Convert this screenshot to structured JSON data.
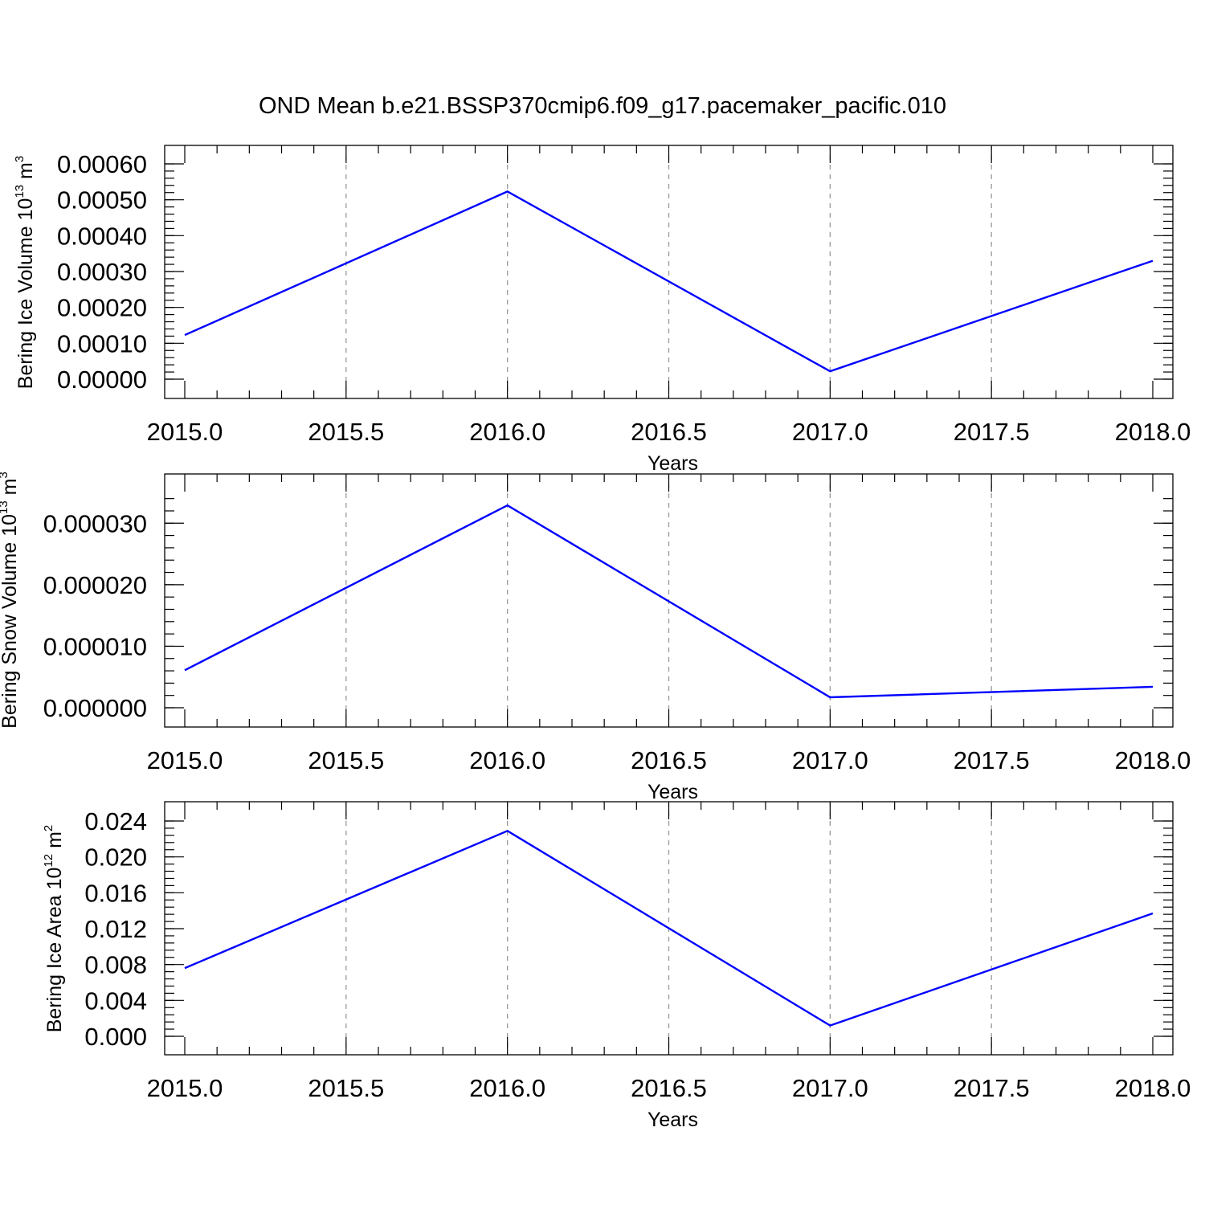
{
  "figure": {
    "title": "OND Mean b.e21.BSSP370cmip6.f09_g17.pacemaker_pacific.010"
  },
  "chart_data": [
    {
      "type": "line",
      "xlabel": "Years",
      "ylabel": {
        "prefix": "Bering Ice Volume 10",
        "exp1": "13",
        "mid": " m",
        "exp2": "3"
      },
      "xlim": [
        2015.0,
        2018.0
      ],
      "ylim": [
        0.0,
        0.0006
      ],
      "x_ticks": [
        "2015.0",
        "2015.5",
        "2016.0",
        "2016.5",
        "2017.0",
        "2017.5",
        "2018.0"
      ],
      "y_ticks": [
        {
          "v": 0.0,
          "label": "0.00000"
        },
        {
          "v": 0.0001,
          "label": "0.00010"
        },
        {
          "v": 0.0002,
          "label": "0.00020"
        },
        {
          "v": 0.0003,
          "label": "0.00030"
        },
        {
          "v": 0.0004,
          "label": "0.00040"
        },
        {
          "v": 0.0005,
          "label": "0.00050"
        },
        {
          "v": 0.0006,
          "label": "0.00060"
        }
      ],
      "grid": "vertical-dashed",
      "color": "#0000ff",
      "x": [
        2015,
        2016,
        2017,
        2018
      ],
      "y": [
        0.000123,
        0.000523,
        2.2e-05,
        0.00033
      ]
    },
    {
      "type": "line",
      "xlabel": "Years",
      "ylabel": {
        "prefix": "Bering Snow Volume 10",
        "exp1": "13",
        "mid": " m",
        "exp2": "3"
      },
      "xlim": [
        2015.0,
        2018.0
      ],
      "ylim": [
        0.0,
        3.5e-05
      ],
      "x_ticks": [
        "2015.0",
        "2015.5",
        "2016.0",
        "2016.5",
        "2017.0",
        "2017.5",
        "2018.0"
      ],
      "y_ticks": [
        {
          "v": 0.0,
          "label": "0.000000"
        },
        {
          "v": 1e-05,
          "label": "0.000010"
        },
        {
          "v": 2e-05,
          "label": "0.000020"
        },
        {
          "v": 3e-05,
          "label": "0.000030"
        }
      ],
      "grid": "vertical-dashed",
      "color": "#0000ff",
      "x": [
        2015,
        2016,
        2017,
        2018
      ],
      "y": [
        6.1e-06,
        3.29e-05,
        1.7e-06,
        3.4e-06
      ]
    },
    {
      "type": "line",
      "xlabel": "Years",
      "ylabel": {
        "prefix": "Bering Ice Area 10",
        "exp1": "12",
        "mid": " m",
        "exp2": "2"
      },
      "xlim": [
        2015.0,
        2018.0
      ],
      "ylim": [
        0.0,
        0.024
      ],
      "x_ticks": [
        "2015.0",
        "2015.5",
        "2016.0",
        "2016.5",
        "2017.0",
        "2017.5",
        "2018.0"
      ],
      "y_ticks": [
        {
          "v": 0.0,
          "label": "0.000"
        },
        {
          "v": 0.004,
          "label": "0.004"
        },
        {
          "v": 0.008,
          "label": "0.008"
        },
        {
          "v": 0.012,
          "label": "0.012"
        },
        {
          "v": 0.016,
          "label": "0.016"
        },
        {
          "v": 0.02,
          "label": "0.020"
        },
        {
          "v": 0.024,
          "label": "0.024"
        }
      ],
      "grid": "vertical-dashed",
      "color": "#0000ff",
      "x": [
        2015,
        2016,
        2017,
        2018
      ],
      "y": [
        0.0076,
        0.0229,
        0.0012,
        0.0137
      ]
    }
  ]
}
